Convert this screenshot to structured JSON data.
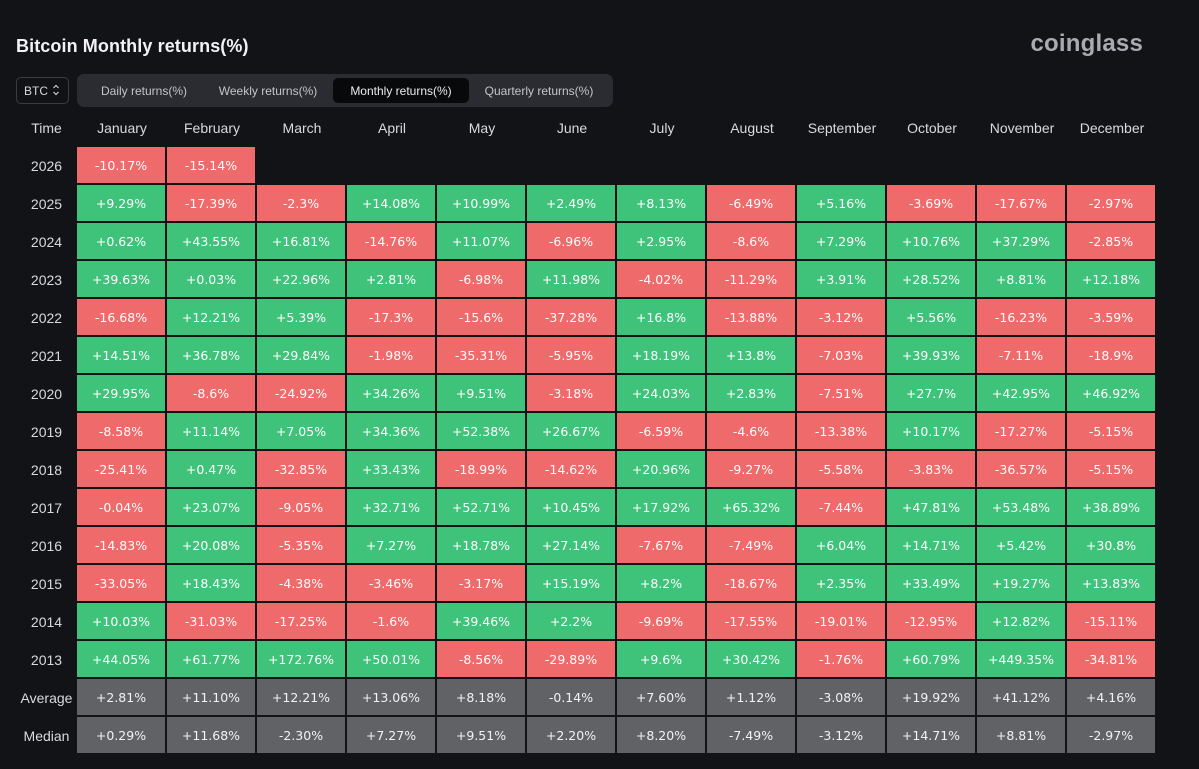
{
  "title": "Bitcoin Monthly returns(%)",
  "brand": "coinglass",
  "asset_select": {
    "value": "BTC",
    "icon": "updown-chevron-icon"
  },
  "tabs": [
    {
      "label": "Daily returns(%)",
      "active": false
    },
    {
      "label": "Weekly returns(%)",
      "active": false
    },
    {
      "label": "Monthly returns(%)",
      "active": true
    },
    {
      "label": "Quarterly returns(%)",
      "active": false
    }
  ],
  "colors": {
    "positive": "#3fc37a",
    "negative": "#ef6a6a",
    "stat": "#616266",
    "background": "#121316"
  },
  "table": {
    "time_header": "Time",
    "months": [
      "January",
      "February",
      "March",
      "April",
      "May",
      "June",
      "July",
      "August",
      "September",
      "October",
      "November",
      "December"
    ],
    "rows": [
      {
        "year": "2026",
        "values": [
          "-10.17%",
          "-15.14%",
          "",
          "",
          "",
          "",
          "",
          "",
          "",
          "",
          "",
          ""
        ]
      },
      {
        "year": "2025",
        "values": [
          "+9.29%",
          "-17.39%",
          "-2.3%",
          "+14.08%",
          "+10.99%",
          "+2.49%",
          "+8.13%",
          "-6.49%",
          "+5.16%",
          "-3.69%",
          "-17.67%",
          "-2.97%"
        ]
      },
      {
        "year": "2024",
        "values": [
          "+0.62%",
          "+43.55%",
          "+16.81%",
          "-14.76%",
          "+11.07%",
          "-6.96%",
          "+2.95%",
          "-8.6%",
          "+7.29%",
          "+10.76%",
          "+37.29%",
          "-2.85%"
        ]
      },
      {
        "year": "2023",
        "values": [
          "+39.63%",
          "+0.03%",
          "+22.96%",
          "+2.81%",
          "-6.98%",
          "+11.98%",
          "-4.02%",
          "-11.29%",
          "+3.91%",
          "+28.52%",
          "+8.81%",
          "+12.18%"
        ]
      },
      {
        "year": "2022",
        "values": [
          "-16.68%",
          "+12.21%",
          "+5.39%",
          "-17.3%",
          "-15.6%",
          "-37.28%",
          "+16.8%",
          "-13.88%",
          "-3.12%",
          "+5.56%",
          "-16.23%",
          "-3.59%"
        ]
      },
      {
        "year": "2021",
        "values": [
          "+14.51%",
          "+36.78%",
          "+29.84%",
          "-1.98%",
          "-35.31%",
          "-5.95%",
          "+18.19%",
          "+13.8%",
          "-7.03%",
          "+39.93%",
          "-7.11%",
          "-18.9%"
        ]
      },
      {
        "year": "2020",
        "values": [
          "+29.95%",
          "-8.6%",
          "-24.92%",
          "+34.26%",
          "+9.51%",
          "-3.18%",
          "+24.03%",
          "+2.83%",
          "-7.51%",
          "+27.7%",
          "+42.95%",
          "+46.92%"
        ]
      },
      {
        "year": "2019",
        "values": [
          "-8.58%",
          "+11.14%",
          "+7.05%",
          "+34.36%",
          "+52.38%",
          "+26.67%",
          "-6.59%",
          "-4.6%",
          "-13.38%",
          "+10.17%",
          "-17.27%",
          "-5.15%"
        ]
      },
      {
        "year": "2018",
        "values": [
          "-25.41%",
          "+0.47%",
          "-32.85%",
          "+33.43%",
          "-18.99%",
          "-14.62%",
          "+20.96%",
          "-9.27%",
          "-5.58%",
          "-3.83%",
          "-36.57%",
          "-5.15%"
        ]
      },
      {
        "year": "2017",
        "values": [
          "-0.04%",
          "+23.07%",
          "-9.05%",
          "+32.71%",
          "+52.71%",
          "+10.45%",
          "+17.92%",
          "+65.32%",
          "-7.44%",
          "+47.81%",
          "+53.48%",
          "+38.89%"
        ]
      },
      {
        "year": "2016",
        "values": [
          "-14.83%",
          "+20.08%",
          "-5.35%",
          "+7.27%",
          "+18.78%",
          "+27.14%",
          "-7.67%",
          "-7.49%",
          "+6.04%",
          "+14.71%",
          "+5.42%",
          "+30.8%"
        ]
      },
      {
        "year": "2015",
        "values": [
          "-33.05%",
          "+18.43%",
          "-4.38%",
          "-3.46%",
          "-3.17%",
          "+15.19%",
          "+8.2%",
          "-18.67%",
          "+2.35%",
          "+33.49%",
          "+19.27%",
          "+13.83%"
        ]
      },
      {
        "year": "2014",
        "values": [
          "+10.03%",
          "-31.03%",
          "-17.25%",
          "-1.6%",
          "+39.46%",
          "+2.2%",
          "-9.69%",
          "-17.55%",
          "-19.01%",
          "-12.95%",
          "+12.82%",
          "-15.11%"
        ]
      },
      {
        "year": "2013",
        "values": [
          "+44.05%",
          "+61.77%",
          "+172.76%",
          "+50.01%",
          "-8.56%",
          "-29.89%",
          "+9.6%",
          "+30.42%",
          "-1.76%",
          "+60.79%",
          "+449.35%",
          "-34.81%"
        ]
      }
    ],
    "stats": [
      {
        "label": "Average",
        "values": [
          "+2.81%",
          "+11.10%",
          "+12.21%",
          "+13.06%",
          "+8.18%",
          "-0.14%",
          "+7.60%",
          "+1.12%",
          "-3.08%",
          "+19.92%",
          "+41.12%",
          "+4.16%"
        ]
      },
      {
        "label": "Median",
        "values": [
          "+0.29%",
          "+11.68%",
          "-2.30%",
          "+7.27%",
          "+9.51%",
          "+2.20%",
          "+8.20%",
          "-7.49%",
          "-3.12%",
          "+14.71%",
          "+8.81%",
          "-2.97%"
        ]
      }
    ]
  }
}
